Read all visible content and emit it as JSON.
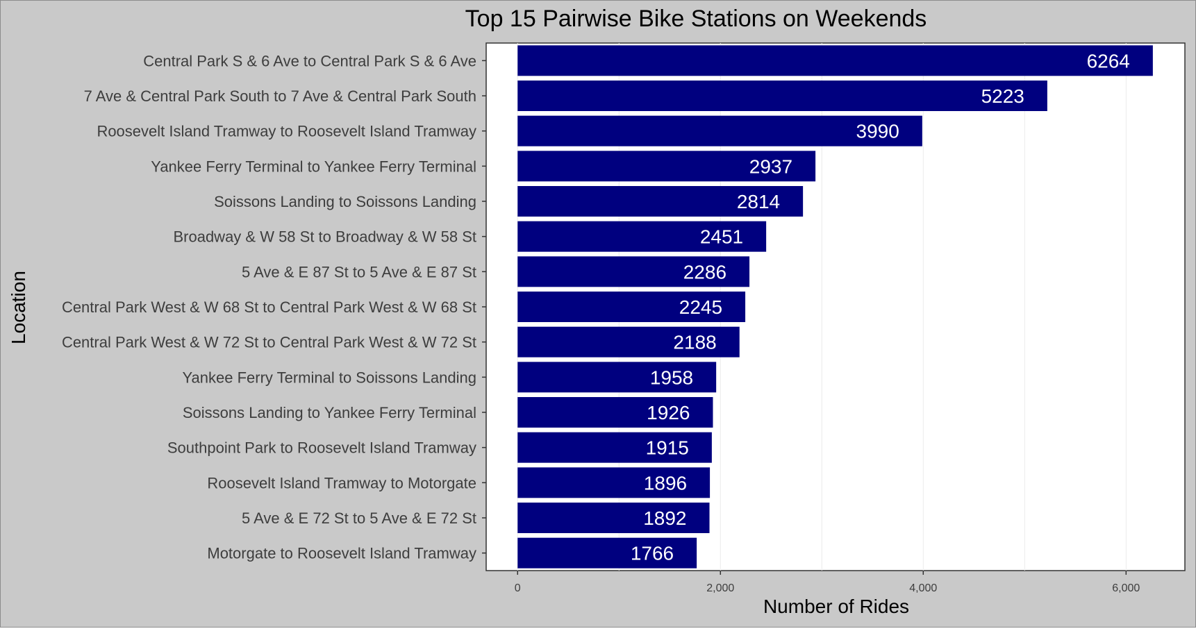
{
  "colors": {
    "background": "#c9c9c9",
    "panel": "#ffffff",
    "bar": "#00007f",
    "bar_label": "#ffffff",
    "grid": "#ffffff",
    "axis_text": "#3d3d3d",
    "title_text": "#000000"
  },
  "chart_data": {
    "type": "bar",
    "orientation": "horizontal",
    "title": "Top 15 Pairwise Bike Stations on Weekends",
    "xlabel": "Number of Rides",
    "ylabel": "Location",
    "xlim": [
      -310,
      6580
    ],
    "xticks": [
      0,
      2000,
      4000,
      6000
    ],
    "xtick_labels": [
      "0",
      "2,000",
      "4,000",
      "6,000"
    ],
    "grid": true,
    "legend": "none",
    "categories": [
      "Central Park S & 6 Ave to Central Park S & 6 Ave",
      "7 Ave & Central Park South to 7 Ave & Central Park South",
      "Roosevelt Island Tramway to Roosevelt Island Tramway",
      "Yankee Ferry Terminal to Yankee Ferry Terminal",
      "Soissons Landing to Soissons Landing",
      "Broadway & W 58 St to Broadway & W 58 St",
      "5 Ave & E 87 St to 5 Ave & E 87 St",
      "Central Park West & W 68 St to Central Park West & W 68 St",
      "Central Park West & W 72 St to Central Park West & W 72 St",
      "Yankee Ferry Terminal to Soissons Landing",
      "Soissons Landing to Yankee Ferry Terminal",
      "Southpoint Park to Roosevelt Island Tramway",
      "Roosevelt Island Tramway to Motorgate",
      "5 Ave & E 72 St to 5 Ave & E 72 St",
      "Motorgate to Roosevelt Island Tramway"
    ],
    "values": [
      6264,
      5223,
      3990,
      2937,
      2814,
      2451,
      2286,
      2245,
      2188,
      1958,
      1926,
      1915,
      1896,
      1892,
      1766
    ]
  }
}
